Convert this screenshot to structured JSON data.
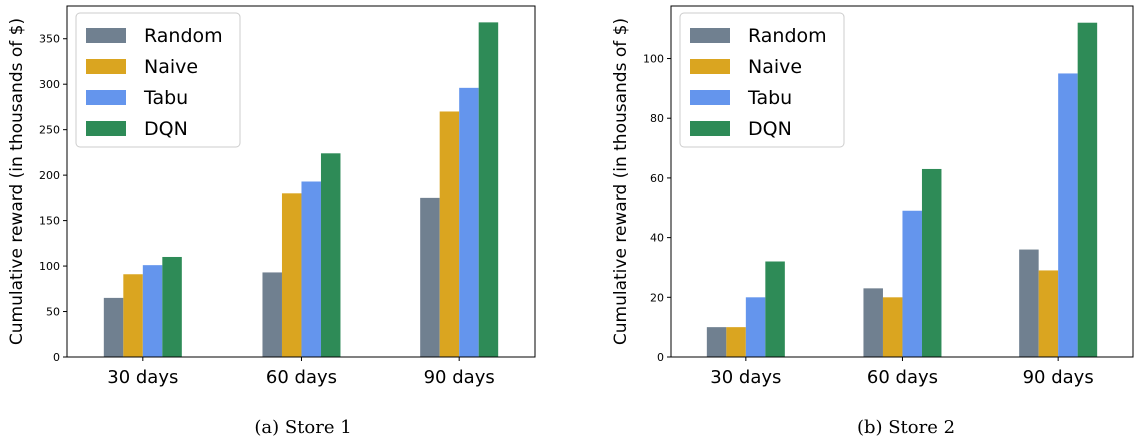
{
  "chart_data": [
    {
      "type": "bar",
      "caption": "(a) Store 1",
      "categories": [
        "30 days",
        "60 days",
        "90 days"
      ],
      "series": [
        {
          "name": "Random",
          "values": [
            65,
            93,
            175
          ]
        },
        {
          "name": "Naive",
          "values": [
            91,
            180,
            270
          ]
        },
        {
          "name": "Tabu",
          "values": [
            101,
            193,
            296
          ]
        },
        {
          "name": "DQN",
          "values": [
            110,
            224,
            368
          ]
        }
      ],
      "ylabel": "Cumulative reward (in thousands of $)",
      "ylim": [
        0,
        386
      ],
      "yticks": [
        0,
        50,
        100,
        150,
        200,
        250,
        300,
        350
      ],
      "legend": "top-left",
      "grid": false
    },
    {
      "type": "bar",
      "caption": "(b) Store 2",
      "categories": [
        "30 days",
        "60 days",
        "90 days"
      ],
      "series": [
        {
          "name": "Random",
          "values": [
            10,
            23,
            36
          ]
        },
        {
          "name": "Naive",
          "values": [
            10,
            20,
            29
          ]
        },
        {
          "name": "Tabu",
          "values": [
            20,
            49,
            95
          ]
        },
        {
          "name": "DQN",
          "values": [
            32,
            63,
            112
          ]
        }
      ],
      "ylabel": "Cumulative reward (in thousands of $)",
      "ylim": [
        0,
        117.6
      ],
      "yticks": [
        0,
        20,
        40,
        60,
        80,
        100
      ],
      "legend": "top-left",
      "grid": false
    }
  ],
  "colors": {
    "Random": "#708090",
    "Naive": "#DAA520",
    "Tabu": "#6495ED",
    "DQN": "#2E8B57"
  }
}
